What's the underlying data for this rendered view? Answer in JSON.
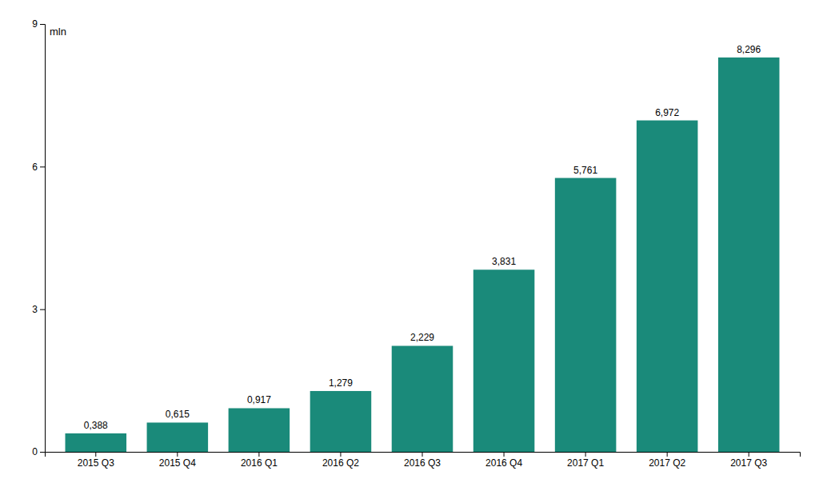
{
  "chart_data": {
    "type": "bar",
    "ylabel": "mln",
    "categories": [
      "2015 Q3",
      "2015 Q4",
      "2016 Q1",
      "2016 Q2",
      "2016 Q3",
      "2016 Q4",
      "2017 Q1",
      "2017 Q2",
      "2017 Q3"
    ],
    "values": [
      0.388,
      0.615,
      0.917,
      1.279,
      2.229,
      3.831,
      5.761,
      6.972,
      8.296
    ],
    "value_labels": [
      "0,388",
      "0,615",
      "0,917",
      "1,279",
      "2,229",
      "3,831",
      "5,761",
      "6,972",
      "8,296"
    ],
    "color": "#1a8a7a",
    "ylim": [
      0,
      9
    ],
    "yticks": [
      0,
      3,
      6,
      9
    ],
    "grid": false,
    "data_labels": true
  }
}
